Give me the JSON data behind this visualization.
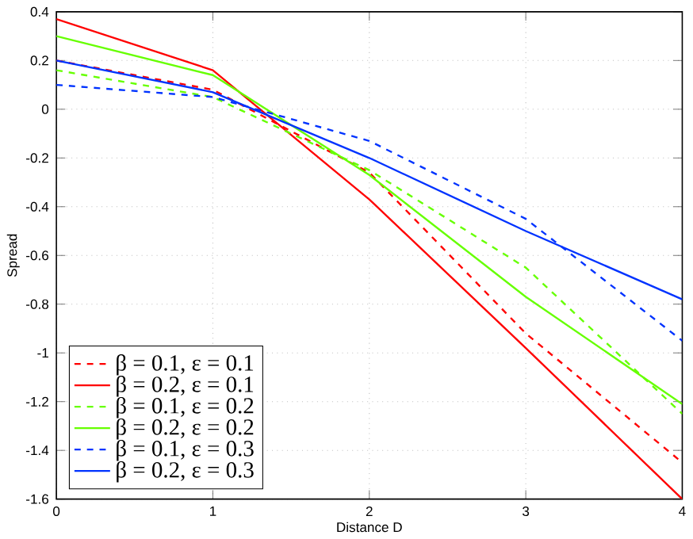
{
  "chart_data": {
    "type": "line",
    "xlabel": "Distance D",
    "ylabel": "Spread",
    "x": [
      0,
      1,
      2,
      3,
      4
    ],
    "series": [
      {
        "name": "β = 0.1, ε = 0.1",
        "color": "#ff0000",
        "line_style": "dashed",
        "values": [
          0.2,
          0.08,
          -0.26,
          -0.92,
          -1.45
        ]
      },
      {
        "name": "β = 0.2, ε = 0.1",
        "color": "#ff0000",
        "line_style": "solid",
        "values": [
          0.37,
          0.16,
          -0.37,
          -0.98,
          -1.6
        ]
      },
      {
        "name": "β = 0.1, ε = 0.2",
        "color": "#66ff00",
        "line_style": "dashed",
        "values": [
          0.16,
          0.05,
          -0.25,
          -0.65,
          -1.25
        ]
      },
      {
        "name": "β = 0.2, ε = 0.2",
        "color": "#66ff00",
        "line_style": "solid",
        "values": [
          0.3,
          0.14,
          -0.27,
          -0.77,
          -1.21
        ]
      },
      {
        "name": "β = 0.1, ε = 0.3",
        "color": "#0033ff",
        "line_style": "dashed",
        "values": [
          0.1,
          0.05,
          -0.13,
          -0.45,
          -0.95
        ]
      },
      {
        "name": "β = 0.2, ε = 0.3",
        "color": "#0033ff",
        "line_style": "solid",
        "values": [
          0.2,
          0.07,
          -0.2,
          -0.5,
          -0.78
        ]
      }
    ],
    "xlim": [
      0,
      4
    ],
    "ylim": [
      -1.6,
      0.4
    ],
    "xticks": [
      0,
      1,
      2,
      3,
      4
    ],
    "yticks": [
      -1.6,
      -1.4,
      -1.2,
      -1,
      -0.8,
      -0.6,
      -0.4,
      -0.2,
      0,
      0.2,
      0.4
    ],
    "grid": true,
    "legend": "bottom left",
    "marker": "none"
  }
}
